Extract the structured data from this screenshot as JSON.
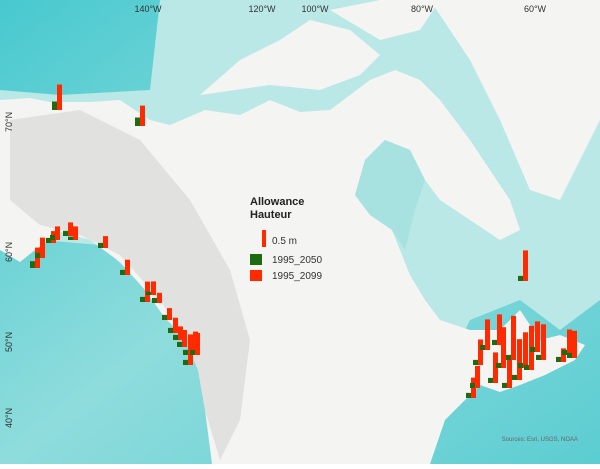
{
  "chart_data": {
    "type": "map-bars",
    "legend_title": [
      "Allowance",
      "Hauteur"
    ],
    "scale_reference": {
      "value": 0.5,
      "label": "0.5 m"
    },
    "xticks": [
      "140°W",
      "120°W",
      "100°W",
      "80°W",
      "60°W"
    ],
    "yticks": [
      "70°N",
      "60°N",
      "50°N",
      "40°N"
    ],
    "attribution": "Sources: Esri, USGS, NOAA",
    "series": [
      {
        "name": "1995_2050",
        "color": "#1f6b14",
        "values": [
          0.25,
          0.25,
          0.2,
          0.15,
          0.15,
          0.15,
          0.15,
          0.1,
          0.15,
          0.15,
          0.15,
          0.1,
          0.15,
          0.15,
          0.15,
          0.15,
          0.15,
          0.15,
          0.15,
          0.15,
          0.15,
          0.15,
          0.15,
          0.15,
          0.15,
          0.15,
          0.15,
          0.15,
          0.15,
          0.15,
          0.15,
          0.15,
          0.15,
          0.15,
          0.15,
          0.15,
          0.15,
          0.15,
          0.15
        ]
      },
      {
        "name": "1995_2099",
        "color": "#ff2a00",
        "values": [
          0.75,
          0.6,
          0.6,
          0.6,
          0.35,
          0.4,
          0.4,
          0.4,
          0.35,
          0.45,
          0.6,
          0.4,
          0.3,
          0.35,
          0.45,
          0.4,
          0.5,
          0.6,
          0.6,
          0.9,
          0.65,
          0.9,
          0.6,
          0.65,
          0.75,
          0.9,
          0.9,
          0.9,
          1.2,
          0.9,
          1.3,
          1.2,
          1.05,
          1.3,
          0.9,
          1.05,
          0.4,
          0.75,
          0.8
        ]
      }
    ]
  }
}
